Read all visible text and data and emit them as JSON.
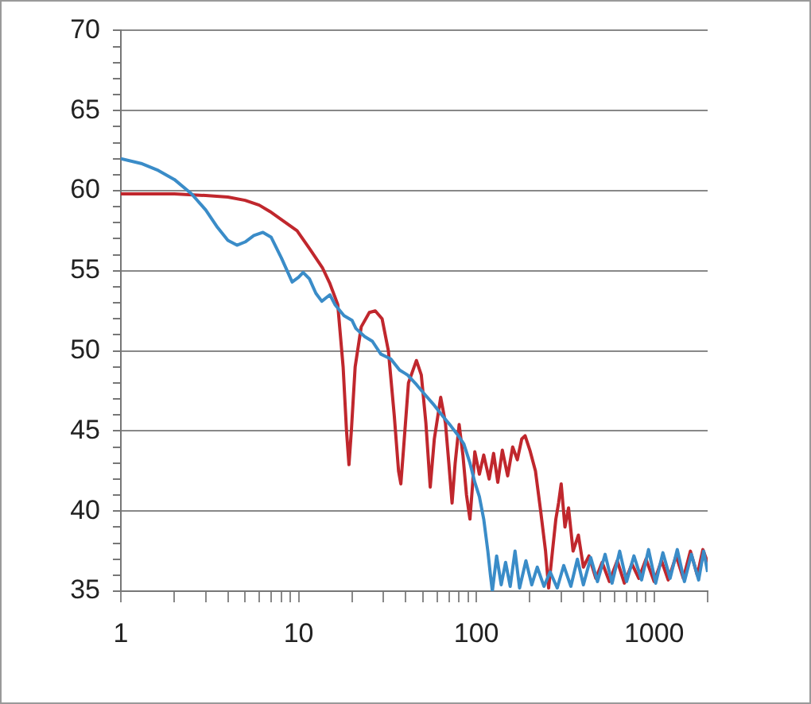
{
  "chart_data": {
    "type": "line",
    "log": "x",
    "grid": "y",
    "marker": "none",
    "line_style": "solid",
    "xlim": [
      1,
      2000
    ],
    "ylim": [
      35,
      70
    ],
    "xticks": [
      1,
      {
        "value": 2,
        "label": null
      },
      {
        "value": 3,
        "label": null
      },
      {
        "value": 4,
        "label": null
      },
      {
        "value": 5,
        "label": null
      },
      {
        "value": 6,
        "label": null
      },
      {
        "value": 7,
        "label": null
      },
      {
        "value": 8,
        "label": null
      },
      {
        "value": 9,
        "label": null
      },
      10,
      {
        "value": 20,
        "label": null
      },
      {
        "value": 30,
        "label": null
      },
      {
        "value": 40,
        "label": null
      },
      {
        "value": 50,
        "label": null
      },
      {
        "value": 60,
        "label": null
      },
      {
        "value": 70,
        "label": null
      },
      {
        "value": 80,
        "label": null
      },
      {
        "value": 90,
        "label": null
      },
      100,
      {
        "value": 200,
        "label": null
      },
      {
        "value": 300,
        "label": null
      },
      {
        "value": 400,
        "label": null
      },
      {
        "value": 500,
        "label": null
      },
      {
        "value": 600,
        "label": null
      },
      {
        "value": 700,
        "label": null
      },
      {
        "value": 800,
        "label": null
      },
      {
        "value": 900,
        "label": null
      },
      1000,
      {
        "value": 2000,
        "label": null
      }
    ],
    "yticks": [
      35,
      {
        "value": 36,
        "label": null
      },
      {
        "value": 37,
        "label": null
      },
      {
        "value": 38,
        "label": null
      },
      {
        "value": 39,
        "label": null
      },
      40,
      {
        "value": 41,
        "label": null
      },
      {
        "value": 42,
        "label": null
      },
      {
        "value": 43,
        "label": null
      },
      {
        "value": 44,
        "label": null
      },
      45,
      {
        "value": 46,
        "label": null
      },
      {
        "value": 47,
        "label": null
      },
      {
        "value": 48,
        "label": null
      },
      {
        "value": 49,
        "label": null
      },
      50,
      {
        "value": 51,
        "label": null
      },
      {
        "value": 52,
        "label": null
      },
      {
        "value": 53,
        "label": null
      },
      {
        "value": 54,
        "label": null
      },
      55,
      {
        "value": 56,
        "label": null
      },
      {
        "value": 57,
        "label": null
      },
      {
        "value": 58,
        "label": null
      },
      {
        "value": 59,
        "label": null
      },
      60,
      {
        "value": 61,
        "label": null
      },
      {
        "value": 62,
        "label": null
      },
      {
        "value": 63,
        "label": null
      },
      {
        "value": 64,
        "label": null
      },
      65,
      {
        "value": 66,
        "label": null
      },
      {
        "value": 67,
        "label": null
      },
      {
        "value": 68,
        "label": null
      },
      {
        "value": 69,
        "label": null
      },
      70
    ],
    "series": [
      {
        "color": "#3a8cc8",
        "x": [
          1,
          1.3,
          1.6,
          2,
          2.5,
          3,
          3.5,
          4,
          4.5,
          5,
          5.6,
          6.3,
          7,
          8,
          9.2,
          10,
          10.6,
          11.5,
          12.5,
          13.5,
          15,
          16,
          18,
          20,
          21,
          23.5,
          26,
          29,
          33,
          37,
          41,
          46,
          52,
          58,
          65,
          72,
          78,
          85,
          92,
          98,
          104,
          110,
          116,
          120,
          123,
          130,
          138,
          146,
          155,
          165,
          175,
          190,
          205,
          220,
          240,
          260,
          285,
          310,
          340,
          370,
          400,
          440,
          480,
          530,
          580,
          640,
          700,
          770,
          850,
          930,
          1020,
          1120,
          1230,
          1350,
          1480,
          1620,
          1780,
          1900,
          2000
        ],
        "values": [
          62,
          61.7,
          61.3,
          60.7,
          59.8,
          58.8,
          57.7,
          56.9,
          56.6,
          56.8,
          57.2,
          57.4,
          57.1,
          55.8,
          54.3,
          54.6,
          54.9,
          54.5,
          53.6,
          53.1,
          53.5,
          52.9,
          52.2,
          51.9,
          51.4,
          50.9,
          50.6,
          49.8,
          49.5,
          48.8,
          48.5,
          47.9,
          47.2,
          46.6,
          45.9,
          45.3,
          44.8,
          44.2,
          43,
          41.8,
          40.9,
          39.5,
          37.5,
          36,
          35,
          37.2,
          35.4,
          36.8,
          35.3,
          37.5,
          35.2,
          36.9,
          35.4,
          36.5,
          35.3,
          36.2,
          35.2,
          36.6,
          35.3,
          37,
          35.4,
          37.1,
          35.6,
          37.3,
          35.5,
          37.5,
          35.6,
          37.2,
          35.7,
          37.6,
          35.5,
          37.4,
          35.8,
          37.6,
          35.6,
          37.3,
          35.7,
          37.5,
          36.2
        ]
      },
      {
        "color": "#c0272d",
        "x": [
          1,
          1.5,
          2,
          3,
          4,
          5,
          6,
          6.9,
          8,
          9.8,
          11.5,
          13.6,
          15,
          16.6,
          17.8,
          18.6,
          19.2,
          19.8,
          20.8,
          22.5,
          25,
          27,
          29.5,
          32,
          34.5,
          36.5,
          37.6,
          39,
          41.5,
          46,
          49,
          52,
          55,
          58,
          63,
          67,
          70,
          73,
          76,
          80,
          84,
          88,
          92,
          95,
          98,
          104,
          110,
          118,
          125,
          132,
          140,
          150,
          160,
          170,
          180,
          188,
          200,
          215,
          230,
          245,
          255,
          268,
          280,
          290,
          300,
          315,
          330,
          350,
          375,
          400,
          430,
          470,
          510,
          560,
          620,
          680,
          750,
          820,
          900,
          1000,
          1100,
          1200,
          1330,
          1460,
          1600,
          1750,
          1880,
          2000
        ],
        "values": [
          59.8,
          59.8,
          59.8,
          59.7,
          59.6,
          59.4,
          59.1,
          58.7,
          58.2,
          57.5,
          56.4,
          55.2,
          54.2,
          52.9,
          49,
          45,
          42.9,
          45,
          49,
          51.5,
          52.4,
          52.5,
          52,
          50,
          46,
          42.5,
          41.7,
          44,
          48,
          49.4,
          48.5,
          45.5,
          41.5,
          44.5,
          47.1,
          45.5,
          43,
          40.5,
          43,
          45.4,
          43.5,
          41,
          39.5,
          41.5,
          43.7,
          42.3,
          43.5,
          42,
          43.6,
          41.8,
          43.8,
          42.2,
          44,
          43.2,
          44.5,
          44.7,
          43.8,
          42.5,
          40,
          37.5,
          35.2,
          37.5,
          39.5,
          40.5,
          41.7,
          39,
          40.2,
          37.5,
          38.5,
          36.5,
          37.2,
          35.8,
          36.8,
          35.6,
          36.9,
          35.5,
          36.7,
          35.8,
          37,
          35.6,
          36.9,
          35.7,
          37.2,
          35.8,
          37.5,
          36,
          37.6,
          36.8
        ]
      }
    ]
  }
}
